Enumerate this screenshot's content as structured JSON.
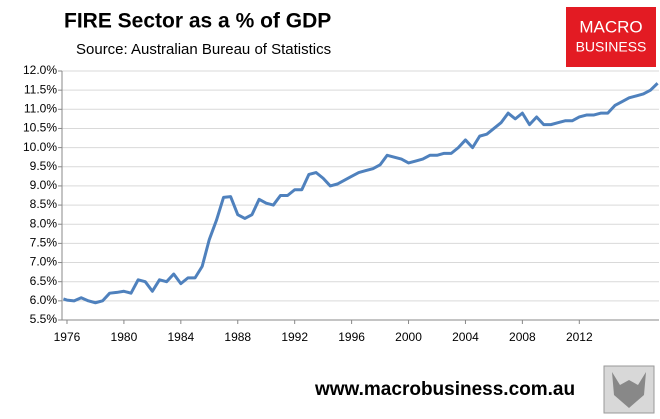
{
  "chart_data": {
    "type": "line",
    "title": "FIRE Sector as a % of GDP",
    "subtitle": "Source: Australian Bureau of Statistics",
    "x": [
      1975.75,
      1976,
      1976.5,
      1977,
      1977.5,
      1978,
      1978.5,
      1979,
      1979.5,
      1980,
      1980.5,
      1981,
      1981.5,
      1982,
      1982.5,
      1983,
      1983.5,
      1984,
      1984.5,
      1985,
      1985.5,
      1986,
      1986.5,
      1987,
      1987.5,
      1988,
      1988.5,
      1989,
      1989.5,
      1990,
      1990.5,
      1991,
      1991.5,
      1992,
      1992.5,
      1993,
      1993.5,
      1994,
      1994.5,
      1995,
      1995.5,
      1996,
      1996.5,
      1997,
      1997.5,
      1998,
      1998.5,
      1999,
      1999.5,
      2000,
      2000.5,
      2001,
      2001.5,
      2002,
      2002.5,
      2003,
      2003.5,
      2004,
      2004.5,
      2005,
      2005.5,
      2006,
      2006.5,
      2007,
      2007.5,
      2008,
      2008.5,
      2009,
      2009.5,
      2010,
      2010.5,
      2011,
      2011.5,
      2012,
      2012.5,
      2013,
      2013.5,
      2014,
      2014.5,
      2015,
      2015.5,
      2016,
      2016.5,
      2017,
      2017.5
    ],
    "values": [
      6.05,
      6.02,
      6.0,
      6.08,
      6.0,
      5.95,
      6.0,
      6.2,
      6.22,
      6.25,
      6.2,
      6.55,
      6.5,
      6.25,
      6.55,
      6.5,
      6.7,
      6.45,
      6.6,
      6.6,
      6.9,
      7.6,
      8.1,
      8.7,
      8.72,
      8.25,
      8.15,
      8.25,
      8.65,
      8.55,
      8.5,
      8.75,
      8.75,
      8.9,
      8.9,
      9.3,
      9.35,
      9.2,
      9.0,
      9.05,
      9.15,
      9.25,
      9.35,
      9.4,
      9.45,
      9.55,
      9.8,
      9.75,
      9.7,
      9.6,
      9.65,
      9.7,
      9.8,
      9.8,
      9.85,
      9.85,
      10.0,
      10.2,
      10.0,
      10.3,
      10.35,
      10.5,
      10.65,
      10.9,
      10.75,
      10.9,
      10.6,
      10.8,
      10.6,
      10.6,
      10.65,
      10.7,
      10.7,
      10.8,
      10.85,
      10.85,
      10.9,
      10.9,
      11.1,
      11.2,
      11.3,
      11.35,
      11.4,
      11.5,
      11.68
    ],
    "color": "#4f81bd",
    "xlim": [
      1975.65,
      2017.6
    ],
    "xticks": [
      1976,
      1980,
      1984,
      1988,
      1992,
      1996,
      2000,
      2004,
      2008,
      2012
    ],
    "ylim": [
      5.5,
      12.0
    ],
    "yticks": [
      {
        "value": 5.5,
        "label": "5.5%"
      },
      {
        "value": 6.0,
        "label": "6.0%"
      },
      {
        "value": 6.5,
        "label": "6.5%"
      },
      {
        "value": 7.0,
        "label": "7.0%"
      },
      {
        "value": 7.5,
        "label": "7.5%"
      },
      {
        "value": 8.0,
        "label": "8.0%"
      },
      {
        "value": 8.5,
        "label": "8.5%"
      },
      {
        "value": 9.0,
        "label": "9.0%"
      },
      {
        "value": 9.5,
        "label": "9.5%"
      },
      {
        "value": 10.0,
        "label": "10.0%"
      },
      {
        "value": 10.5,
        "label": "10.5%"
      },
      {
        "value": 11.0,
        "label": "11.0%"
      },
      {
        "value": 11.5,
        "label": "11.5%"
      },
      {
        "value": 12.0,
        "label": "12.0%"
      }
    ],
    "grid": true
  },
  "logo": {
    "line1": "MACRO",
    "line2": "BUSINESS"
  },
  "footer": "www.macrobusiness.com.au"
}
